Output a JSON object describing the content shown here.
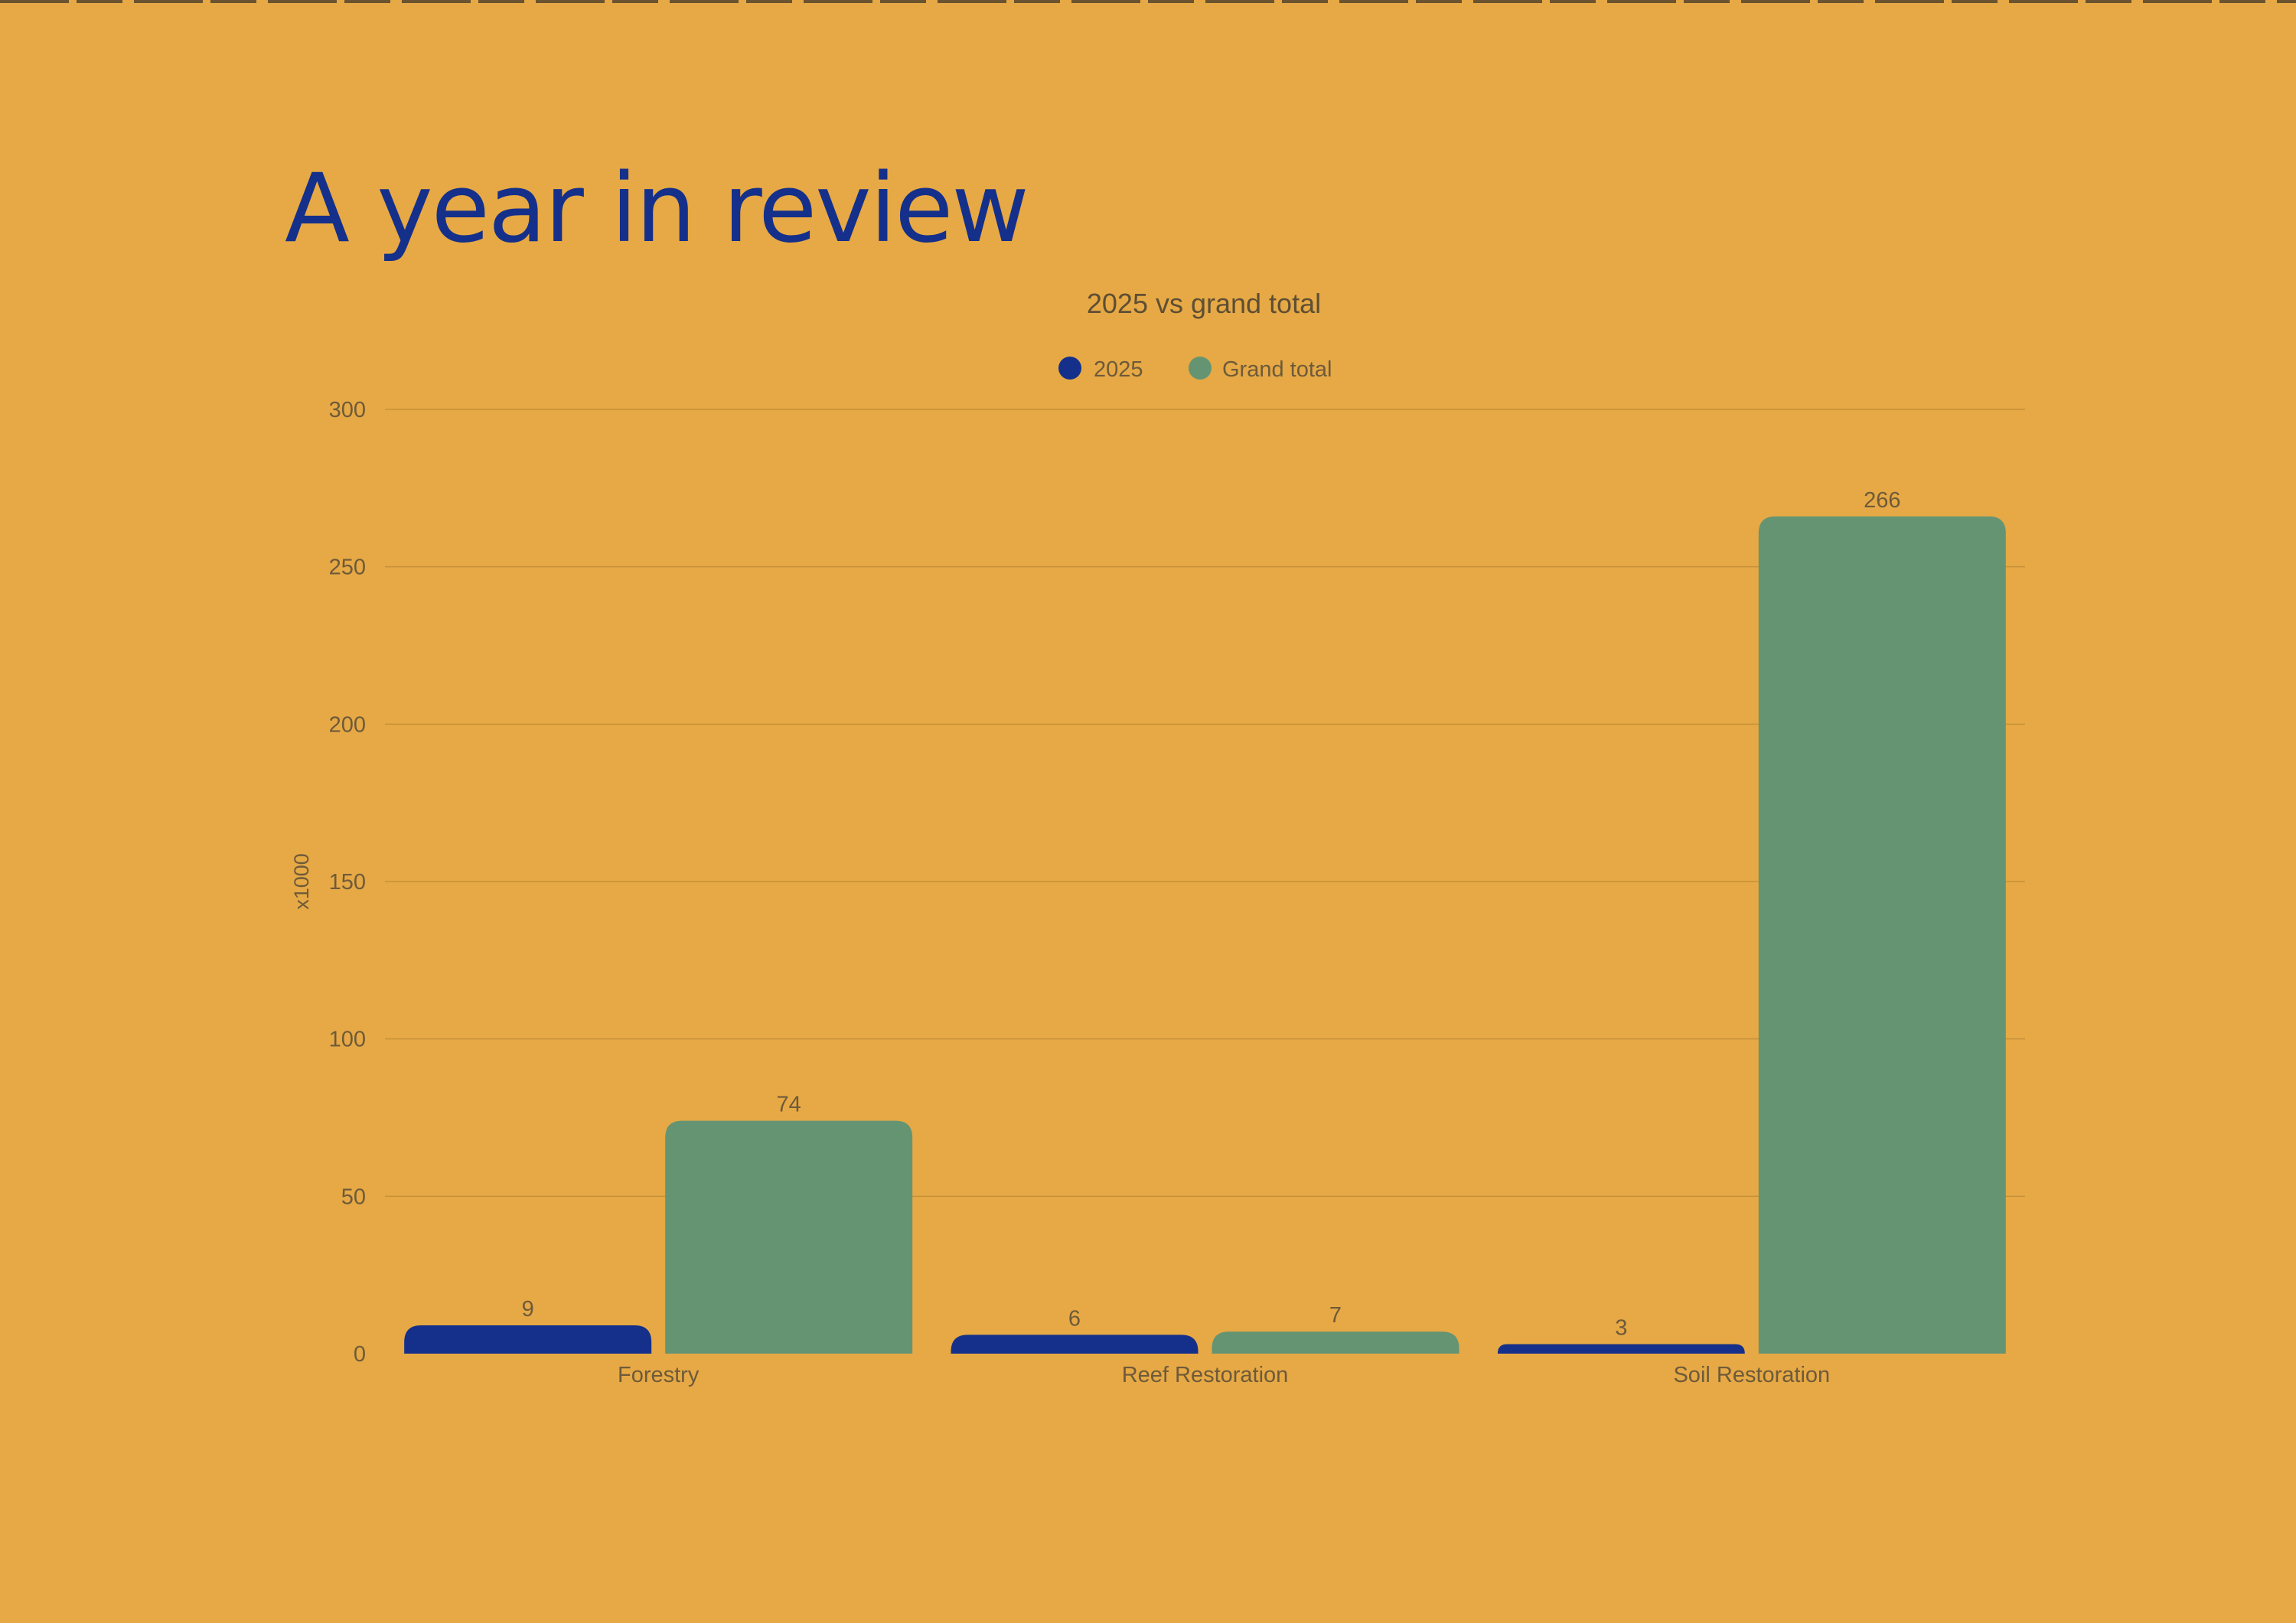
{
  "page": {
    "title": "A year in review"
  },
  "colors": {
    "background": "#E6A945",
    "title": "#15308A",
    "series_2025": "#15308A",
    "series_grand_total": "#659473",
    "text": "#6E5A3A",
    "grid": "#C59038"
  },
  "chart_data": {
    "type": "bar",
    "title": "2025 vs grand total",
    "ylabel": "x1000",
    "xlabel": "",
    "categories": [
      "Forestry",
      "Reef Restoration",
      "Soil Restoration"
    ],
    "series": [
      {
        "name": "2025",
        "values": [
          9,
          6,
          3
        ],
        "color": "#15308A"
      },
      {
        "name": "Grand total",
        "values": [
          74,
          7,
          266
        ],
        "color": "#659473"
      }
    ],
    "ylim": [
      0,
      300
    ],
    "yticks": [
      0,
      50,
      100,
      150,
      200,
      250,
      300
    ],
    "legend": "top-center",
    "grid": true,
    "data_labels": true
  }
}
